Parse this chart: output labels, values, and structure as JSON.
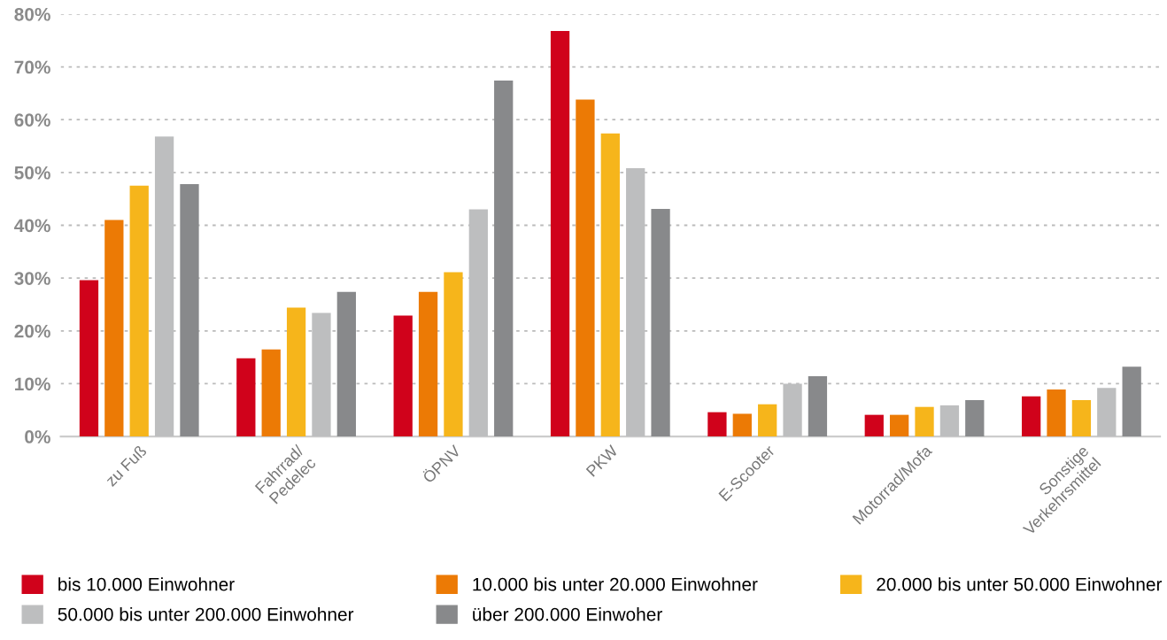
{
  "chart_data": {
    "type": "bar",
    "categories": [
      "zu Fuß",
      "Fahrrad/\nPedelec",
      "ÖPNV",
      "PKW",
      "E-Scooter",
      "Motorrad/Mofa",
      "Sonstige\nVerkehrsmittel"
    ],
    "series": [
      {
        "name": "bis 10.000 Einwohner",
        "color": "#d0021b",
        "values": [
          29.6,
          14.8,
          22.9,
          76.8,
          4.6,
          4.1,
          7.6
        ]
      },
      {
        "name": "10.000 bis unter 20.000 Einwohner",
        "color": "#ec7a05",
        "values": [
          41.0,
          16.5,
          27.4,
          63.8,
          4.3,
          4.1,
          8.9
        ]
      },
      {
        "name": "20.000 bis unter 50.000 Einwohner",
        "color": "#f6b51b",
        "values": [
          47.5,
          24.4,
          31.1,
          57.4,
          6.1,
          5.6,
          6.9
        ]
      },
      {
        "name": "50.000 bis unter 200.000 Einwohner",
        "color": "#bdbebf",
        "values": [
          56.8,
          23.4,
          43.0,
          50.8,
          10.0,
          5.9,
          9.2
        ]
      },
      {
        "name": "über 200.000 Einwoher",
        "color": "#88898b",
        "values": [
          47.8,
          27.4,
          67.4,
          43.1,
          11.4,
          6.9,
          13.2
        ]
      }
    ],
    "ylim": [
      0,
      80
    ],
    "yticks": [
      {
        "value": 0,
        "label": "0%"
      },
      {
        "value": 10,
        "label": "10%"
      },
      {
        "value": 20,
        "label": "20%"
      },
      {
        "value": 30,
        "label": "30%"
      },
      {
        "value": 40,
        "label": "40%"
      },
      {
        "value": 50,
        "label": "50%"
      },
      {
        "value": 60,
        "label": "60%"
      },
      {
        "value": 70,
        "label": "70%"
      },
      {
        "value": 80,
        "label": "80%"
      }
    ],
    "grid": "y",
    "legend": "bottom"
  }
}
